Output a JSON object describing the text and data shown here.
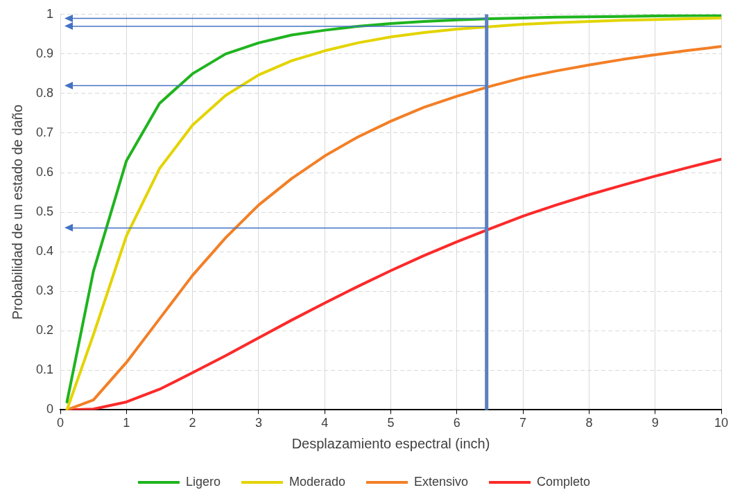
{
  "chart_data": {
    "type": "line",
    "xlabel": "Desplazamiento espectral (inch)",
    "ylabel": "Probabilidad de un estado de daño",
    "x": [
      0.1,
      0.5,
      1,
      1.5,
      2,
      2.5,
      3,
      3.5,
      4,
      4.5,
      5,
      5.5,
      6,
      6.5,
      7,
      7.5,
      8,
      8.5,
      9,
      9.5,
      10
    ],
    "series": [
      {
        "name": "Ligero",
        "color": "#1fb41f",
        "values": [
          0.02,
          0.35,
          0.63,
          0.775,
          0.85,
          0.9,
          0.928,
          0.948,
          0.96,
          0.97,
          0.977,
          0.982,
          0.986,
          0.989,
          0.991,
          0.993,
          0.994,
          0.995,
          0.996,
          0.997,
          0.998
        ]
      },
      {
        "name": "Moderado",
        "color": "#e3d400",
        "values": [
          0,
          0.19,
          0.44,
          0.61,
          0.72,
          0.795,
          0.847,
          0.883,
          0.908,
          0.928,
          0.943,
          0.954,
          0.963,
          0.969,
          0.975,
          0.979,
          0.982,
          0.985,
          0.987,
          0.989,
          0.991
        ]
      },
      {
        "name": "Extensivo",
        "color": "#f37f26",
        "values": [
          0,
          0.025,
          0.12,
          0.23,
          0.34,
          0.435,
          0.518,
          0.585,
          0.642,
          0.69,
          0.73,
          0.765,
          0.793,
          0.818,
          0.84,
          0.857,
          0.872,
          0.886,
          0.898,
          0.909,
          0.919
        ]
      },
      {
        "name": "Completo",
        "color": "#fb2a2a",
        "values": [
          0,
          0.002,
          0.02,
          0.052,
          0.094,
          0.137,
          0.182,
          0.227,
          0.27,
          0.312,
          0.352,
          0.39,
          0.425,
          0.458,
          0.49,
          0.518,
          0.544,
          0.568,
          0.591,
          0.613,
          0.634
        ]
      }
    ],
    "xlim": [
      0,
      10
    ],
    "xticks": [
      0,
      1,
      2,
      3,
      4,
      5,
      6,
      7,
      8,
      9,
      10
    ],
    "ylim": [
      0,
      1
    ],
    "yticks": [
      0,
      0.1,
      0.2,
      0.3,
      0.4,
      0.5,
      0.6,
      0.7,
      0.8,
      0.9,
      1
    ],
    "ref_lines": [
      {
        "axis": "x",
        "value": 6.45,
        "color": "#5b80c0"
      },
      {
        "axis": "y",
        "value": 0.99,
        "color": "#4472c4"
      },
      {
        "axis": "y",
        "value": 0.97,
        "color": "#4472c4"
      },
      {
        "axis": "y",
        "value": 0.82,
        "color": "#4472c4"
      },
      {
        "axis": "y",
        "value": 0.46,
        "color": "#4472c4"
      }
    ],
    "grid": true,
    "line_style": "solid",
    "marker": "none",
    "legend": "bottom"
  }
}
